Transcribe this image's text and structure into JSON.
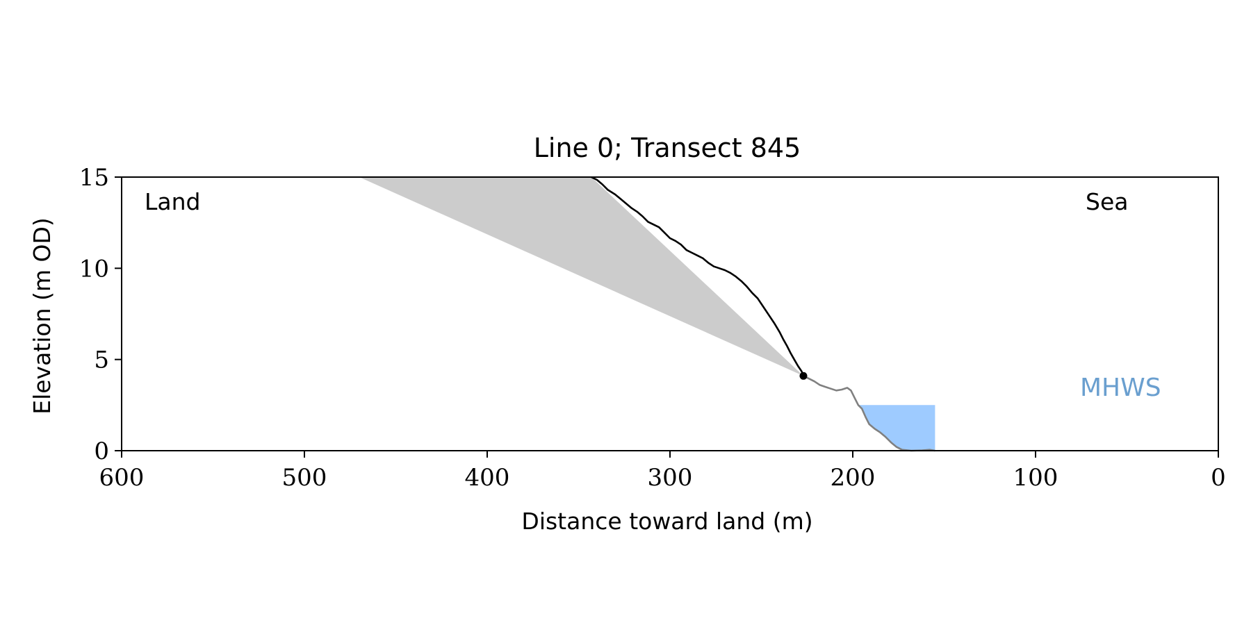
{
  "chart_data": {
    "type": "area",
    "title": "Line 0; Transect 845",
    "xlabel": "Distance toward land (m)",
    "ylabel": "Elevation (m OD)",
    "xlim": [
      600,
      0
    ],
    "ylim": [
      0,
      15
    ],
    "x_reversed": true,
    "xticks": [
      600,
      500,
      400,
      300,
      200,
      100,
      0
    ],
    "yticks": [
      0,
      5,
      10,
      15
    ],
    "annotations": {
      "land": "Land",
      "sea": "Sea",
      "mhws": "MHWS"
    },
    "colors": {
      "profile_upper": "#000000",
      "profile_lower": "#808080",
      "shade": "#cccccc",
      "water": "#9ecbff",
      "mhws_text": "#6a9fcf"
    },
    "profile_upper": [
      [
        343,
        15.0
      ],
      [
        340,
        14.85
      ],
      [
        337,
        14.6
      ],
      [
        334,
        14.3
      ],
      [
        330,
        14.05
      ],
      [
        327,
        13.8
      ],
      [
        324,
        13.55
      ],
      [
        321,
        13.3
      ],
      [
        318,
        13.1
      ],
      [
        315,
        12.85
      ],
      [
        312,
        12.55
      ],
      [
        309,
        12.4
      ],
      [
        306,
        12.25
      ],
      [
        303,
        11.95
      ],
      [
        300,
        11.65
      ],
      [
        297,
        11.5
      ],
      [
        294,
        11.3
      ],
      [
        291,
        11.0
      ],
      [
        288,
        10.85
      ],
      [
        285,
        10.7
      ],
      [
        282,
        10.55
      ],
      [
        279,
        10.3
      ],
      [
        276,
        10.1
      ],
      [
        273,
        10.0
      ],
      [
        270,
        9.9
      ],
      [
        267,
        9.75
      ],
      [
        264,
        9.55
      ],
      [
        261,
        9.3
      ],
      [
        258,
        9.0
      ],
      [
        255,
        8.65
      ],
      [
        252,
        8.35
      ],
      [
        249,
        7.9
      ],
      [
        246,
        7.45
      ],
      [
        243,
        7.0
      ],
      [
        240,
        6.5
      ],
      [
        238,
        6.1
      ],
      [
        236,
        5.75
      ],
      [
        234,
        5.35
      ],
      [
        232,
        5.0
      ],
      [
        230,
        4.65
      ],
      [
        228,
        4.35
      ],
      [
        227,
        4.1
      ]
    ],
    "profile_lower": [
      [
        227,
        4.1
      ],
      [
        224,
        3.95
      ],
      [
        221,
        3.8
      ],
      [
        218,
        3.6
      ],
      [
        215,
        3.5
      ],
      [
        212,
        3.4
      ],
      [
        209,
        3.3
      ],
      [
        206,
        3.35
      ],
      [
        203,
        3.45
      ],
      [
        201,
        3.3
      ],
      [
        199,
        2.9
      ],
      [
        197,
        2.5
      ],
      [
        195,
        2.3
      ],
      [
        193,
        1.85
      ],
      [
        191,
        1.45
      ],
      [
        188,
        1.2
      ],
      [
        185,
        1.0
      ],
      [
        182,
        0.75
      ],
      [
        179,
        0.45
      ],
      [
        176,
        0.2
      ],
      [
        173,
        0.05
      ],
      [
        168,
        0.0
      ],
      [
        162,
        0.02
      ],
      [
        158,
        0.05
      ],
      [
        155,
        0.0
      ]
    ],
    "shade_polygon": [
      [
        470,
        15.0
      ],
      [
        343,
        15.0
      ],
      [
        227,
        4.1
      ]
    ],
    "water_area": {
      "x_start": 197,
      "x_end": 155,
      "level": 2.5
    },
    "marker_point": [
      227,
      4.1
    ]
  }
}
